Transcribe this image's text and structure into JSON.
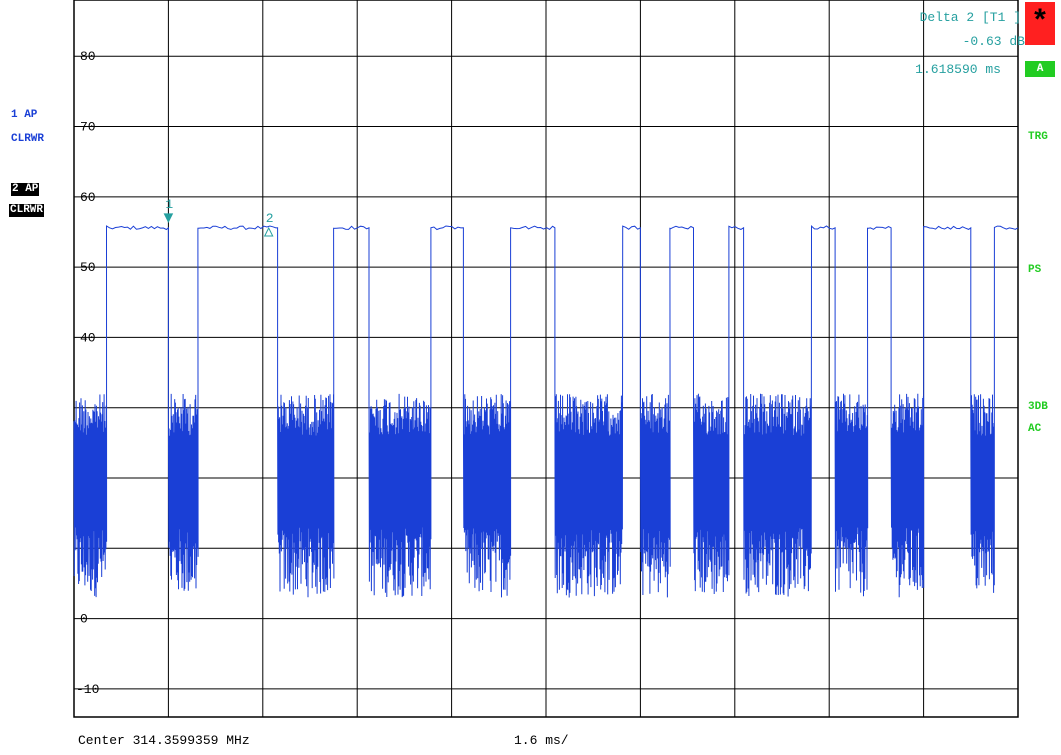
{
  "trace_labels": {
    "trace1_line1": "1 AP",
    "trace1_line2": "CLRWR",
    "trace2_line1": "2 AP",
    "trace2_line2": "CLRWR"
  },
  "status": {
    "star": "*",
    "a": "A",
    "trg": "TRG",
    "ps": "PS",
    "db3": "3DB",
    "ac": "AC"
  },
  "marker_readout": {
    "title": "Delta 2 [T1 ]",
    "level": "-0.63 dB",
    "time": "1.618590 ms"
  },
  "footer": {
    "center": "Center 314.3599359 MHz",
    "span": "1.6 ms/"
  },
  "colors": {
    "trace": "#1a3fd6",
    "marker": "#26a0a0",
    "status": "#22cc22",
    "alert": "#ff2020"
  },
  "chart_data": {
    "type": "line",
    "xlim": [
      0,
      16
    ],
    "ylim": [
      -14,
      88
    ],
    "ytick_labels": [
      "80",
      "70",
      "60",
      "50",
      "40",
      "0",
      "-10"
    ],
    "x_divisions": 10,
    "grid": true,
    "bursts": [
      {
        "start": 0.0,
        "end": 0.55,
        "high_start": 0.55,
        "high_end": 1.6
      },
      {
        "start": 1.6,
        "end": 2.1,
        "high_start": 2.1,
        "high_end": 3.45
      },
      {
        "start": 3.45,
        "end": 4.4,
        "high_start": 4.4,
        "high_end": 5.0
      },
      {
        "start": 5.0,
        "end": 6.05,
        "high_start": 6.05,
        "high_end": 6.6
      },
      {
        "start": 6.6,
        "end": 7.4,
        "high_start": 7.4,
        "high_end": 8.15
      },
      {
        "start": 8.15,
        "end": 9.3,
        "high_start": 9.3,
        "high_end": 9.6
      },
      {
        "start": 9.6,
        "end": 10.1,
        "high_start": 10.1,
        "high_end": 10.5
      },
      {
        "start": 10.5,
        "end": 11.1,
        "high_start": 11.1,
        "high_end": 11.35
      },
      {
        "start": 11.35,
        "end": 12.5,
        "high_start": 12.5,
        "high_end": 12.9
      },
      {
        "start": 12.9,
        "end": 13.45,
        "high_start": 13.45,
        "high_end": 13.85
      },
      {
        "start": 13.85,
        "end": 14.4,
        "high_start": 14.4,
        "high_end": 15.2
      },
      {
        "start": 15.2,
        "end": 15.6,
        "high_start": 15.6,
        "high_end": 16.0
      }
    ],
    "high_level": 55.6,
    "noise_top": 32,
    "noise_bottom": 3,
    "markers": [
      {
        "label": "1",
        "x": 1.6,
        "y": 57,
        "symbol": "filled"
      },
      {
        "label": "2",
        "x": 3.3,
        "y": 55,
        "symbol": "hollow"
      }
    ]
  }
}
